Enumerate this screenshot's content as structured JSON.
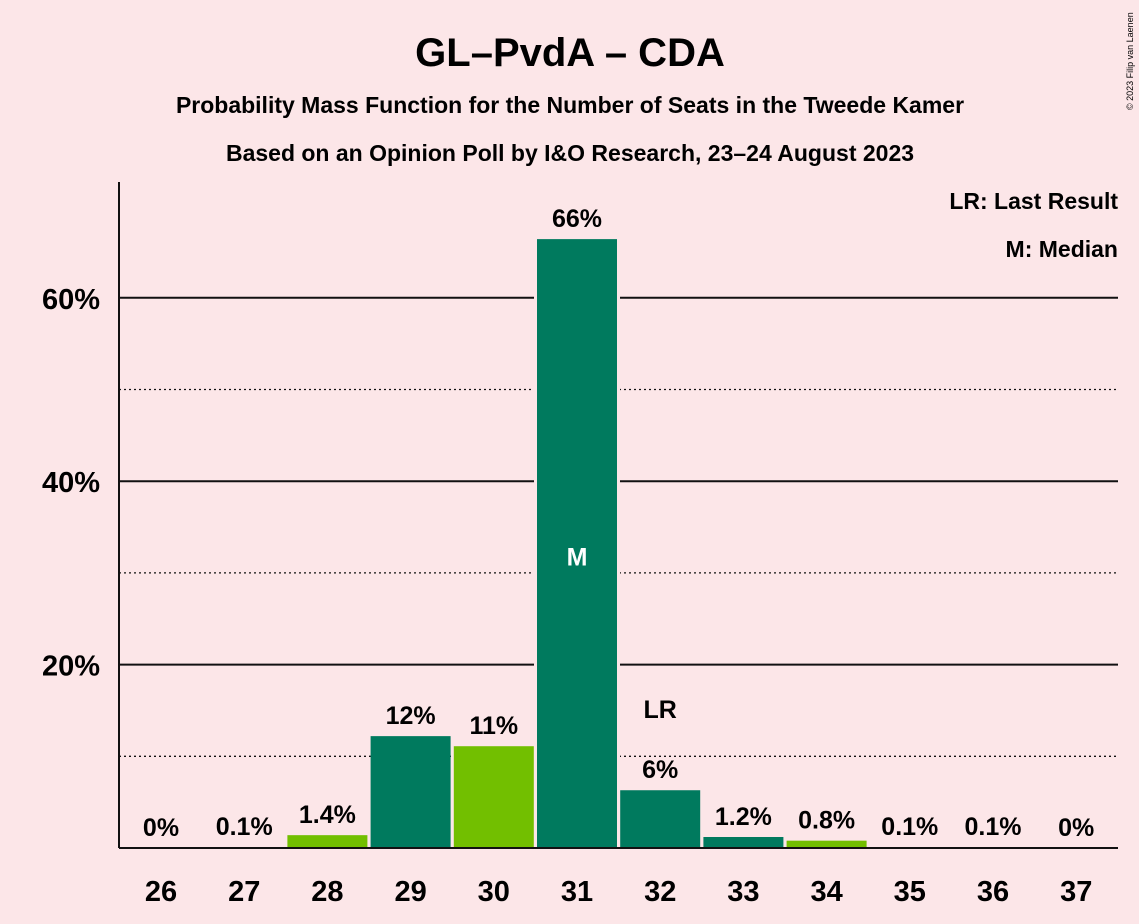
{
  "title": "GL–PvdA – CDA",
  "subtitle": "Probability Mass Function for the Number of Seats in the Tweede Kamer",
  "subtitle2": "Based on an Opinion Poll by I&O Research, 23–24 August 2023",
  "copyright": "© 2023 Filip van Laenen",
  "legend": {
    "last_result": "LR: Last Result",
    "median": "M: Median"
  },
  "colors": {
    "background": "#fce6e8",
    "dark_green": "#007a5e",
    "light_green": "#72bf00",
    "text": "#111111"
  },
  "chart_data": {
    "type": "bar",
    "categories": [
      "26",
      "27",
      "28",
      "29",
      "30",
      "31",
      "32",
      "33",
      "34",
      "35",
      "36",
      "37"
    ],
    "values": [
      0.0,
      0.1,
      1.4,
      12.2,
      11.1,
      66.4,
      6.3,
      1.2,
      0.8,
      0.1,
      0.1,
      0.0
    ],
    "labels": [
      "0%",
      "0.1%",
      "1.4%",
      "12%",
      "11%",
      "66%",
      "6%",
      "1.2%",
      "0.8%",
      "0.1%",
      "0.1%",
      "0%"
    ],
    "bar_colors": [
      "dark",
      "light",
      "light",
      "dark",
      "light",
      "dark",
      "dark",
      "dark",
      "light",
      "dark",
      "dark",
      "dark"
    ],
    "yticks": [
      20,
      40,
      60
    ],
    "ytick_labels": [
      "20%",
      "40%",
      "60%"
    ],
    "minor_gridlines": [
      10,
      30,
      50
    ],
    "ylim": [
      0,
      72
    ],
    "median_category": "31",
    "median_label": "M",
    "last_result_category": "32",
    "last_result_label": "LR",
    "legend_position": "top-right"
  }
}
